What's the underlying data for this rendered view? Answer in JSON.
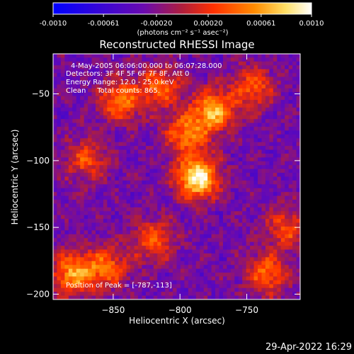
{
  "colorbar": {
    "ticks": [
      "-0.0010",
      "-0.00061",
      "-0.00020",
      "0.00020",
      "0.00061",
      "0.0010"
    ],
    "tick_values": [
      -0.001,
      -0.00061,
      -0.0002,
      0.0002,
      0.00061,
      0.001
    ],
    "range": [
      -0.001,
      0.001
    ],
    "unit_label": "(photons cm⁻² s⁻¹ asec⁻²)"
  },
  "chart_data": {
    "type": "heatmap",
    "title": "Reconstructed RHESSI Image",
    "xlabel": "Heliocentric X (arcsec)",
    "ylabel": "Heliocentric Y (arcsec)",
    "xlim": [
      -895,
      -710
    ],
    "ylim": [
      -204,
      -20
    ],
    "x_ticks": [
      -850,
      -800,
      -750
    ],
    "y_ticks": [
      -50,
      -100,
      -150,
      -200
    ],
    "colormap": [
      "#0000ff",
      "#6a0ab0",
      "#b01e3c",
      "#ff3000",
      "#ff8c00",
      "#ffe066",
      "#ffffff"
    ],
    "peak_position": [
      -787,
      -113
    ],
    "hot_spots": [
      {
        "x": -787,
        "y": -113,
        "intensity": 1.0
      },
      {
        "x": -775,
        "y": -63,
        "intensity": 0.75
      },
      {
        "x": -845,
        "y": -55,
        "intensity": 0.6
      },
      {
        "x": -815,
        "y": -45,
        "intensity": 0.55
      },
      {
        "x": -795,
        "y": -80,
        "intensity": 0.6
      },
      {
        "x": -880,
        "y": -185,
        "intensity": 0.7
      },
      {
        "x": -855,
        "y": -180,
        "intensity": 0.55
      },
      {
        "x": -820,
        "y": -160,
        "intensity": 0.5
      },
      {
        "x": -735,
        "y": -185,
        "intensity": 0.55
      },
      {
        "x": -745,
        "y": -45,
        "intensity": 0.5
      },
      {
        "x": -720,
        "y": -150,
        "intensity": 0.45
      },
      {
        "x": -870,
        "y": -100,
        "intensity": 0.45
      }
    ],
    "annotations": {
      "time_range": "4-May-2005 06:06:00.000 to 06:07:28.000",
      "detectors": "Detectors: 3F 4F 5F 6F 7F 8F, Att 0",
      "energy_range": "Energy Range: 12.0 - 25.0 keV",
      "clean_counts": "Clean     Total counts: 865.",
      "peak_label": "Position of Peak = [-787,-113]"
    }
  },
  "footer": {
    "timestamp": "29-Apr-2022 16:29"
  }
}
